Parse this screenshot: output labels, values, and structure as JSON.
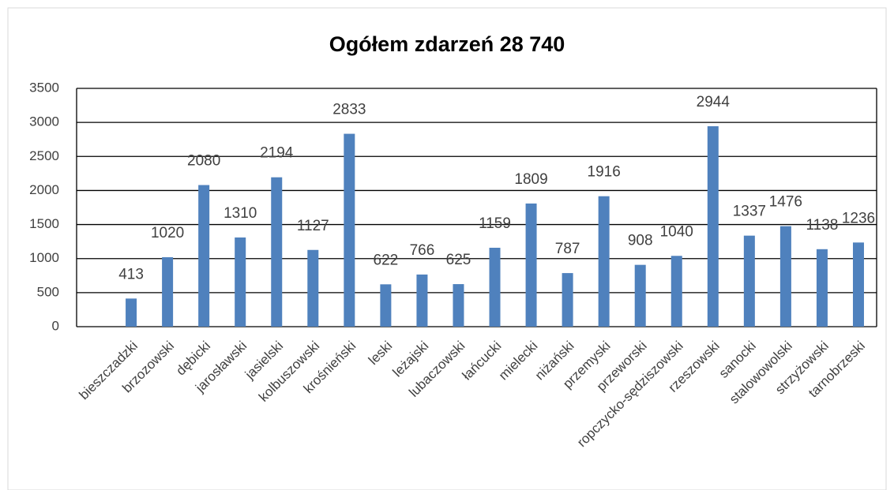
{
  "chart_data": {
    "type": "bar",
    "title": "Ogółem zdarzeń 28 740",
    "categories": [
      null,
      "bieszczadzki",
      "brzozowski",
      "dębicki",
      "jarosławski",
      "jasielski",
      "kolbuszowski",
      "krośnieński",
      "leski",
      "leżajski",
      "lubaczowski",
      "łańcucki",
      "mielecki",
      "niżański",
      "przemyski",
      "przeworski",
      "ropczycko-sędziszowski",
      "rzeszowski",
      "sanocki",
      "stalowowolski",
      "strzyżowski",
      "tarnobrzeski"
    ],
    "values": [
      null,
      413,
      1020,
      2080,
      1310,
      2194,
      1127,
      2833,
      622,
      766,
      625,
      1159,
      1809,
      787,
      1916,
      908,
      1040,
      2944,
      1337,
      1476,
      1138,
      1236
    ],
    "color": "#4f81bd",
    "ylim": [
      0,
      3500
    ],
    "yticks": [
      0,
      500,
      1000,
      1500,
      2000,
      2500,
      3000,
      3500
    ],
    "grid": true
  }
}
